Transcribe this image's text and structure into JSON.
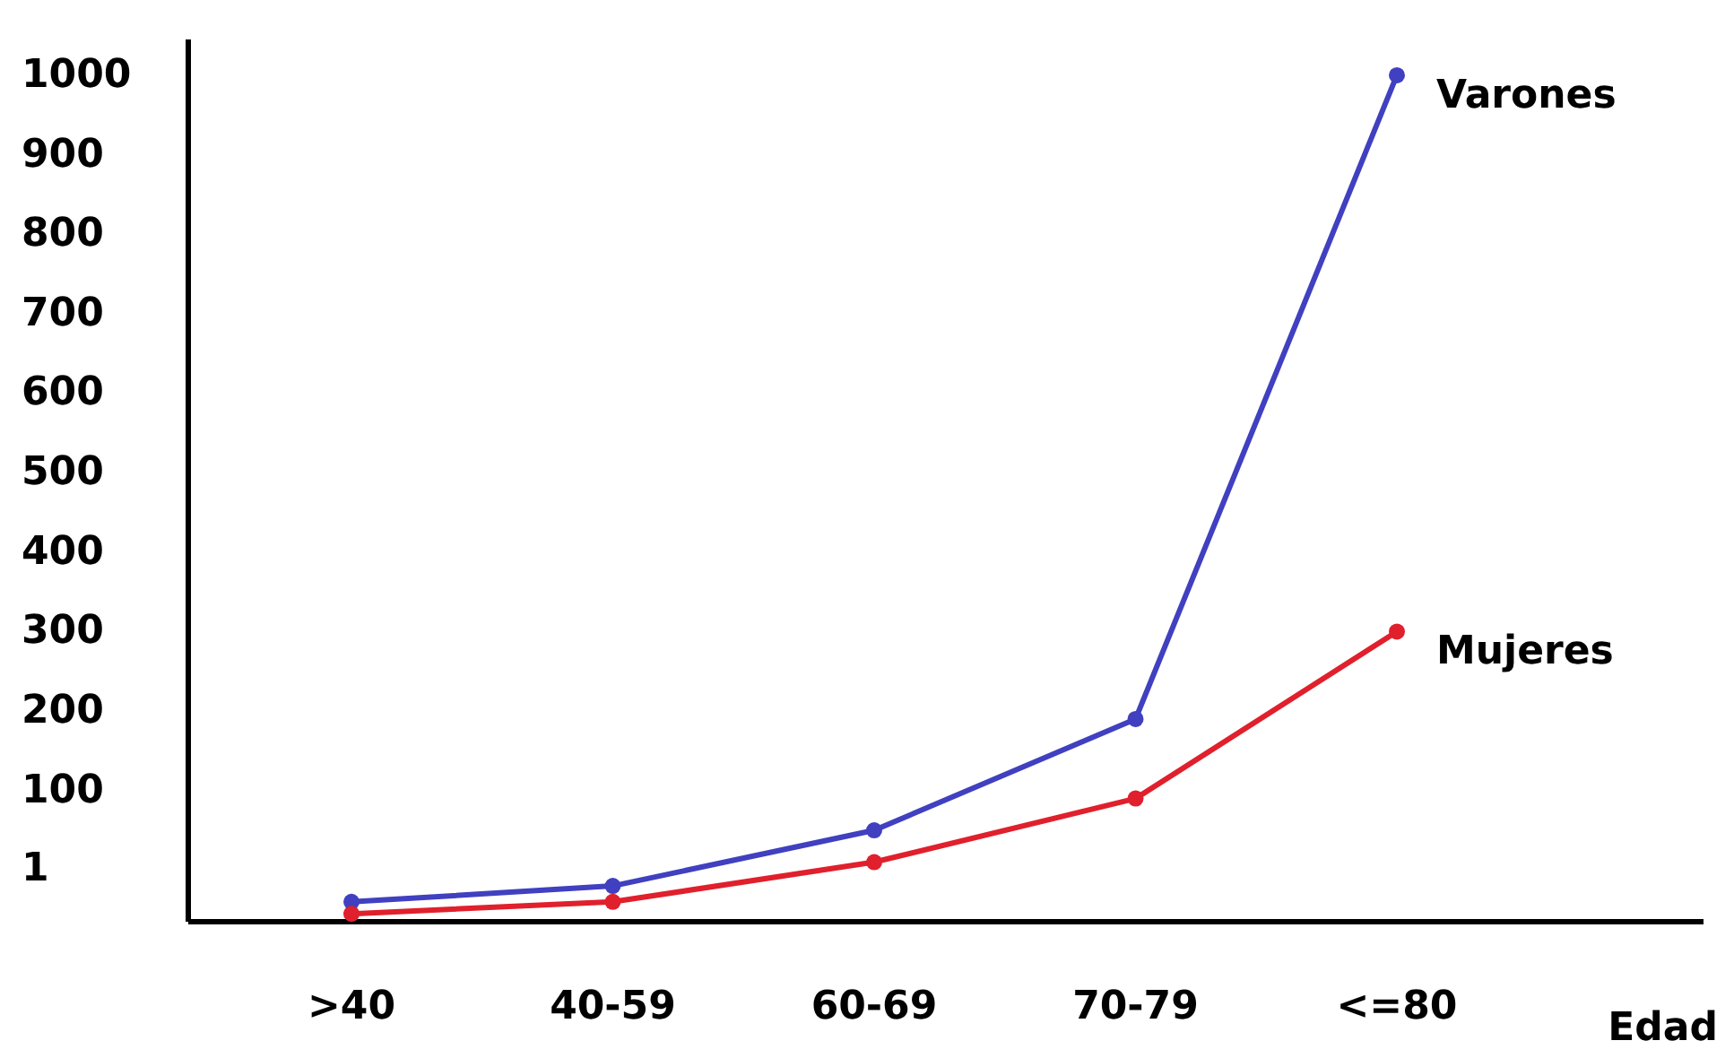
{
  "chart_data": {
    "type": "line",
    "xlabel": "Edad",
    "categories": [
      ">40",
      "40-59",
      "60-69",
      "70-79",
      "<=80"
    ],
    "series": [
      {
        "name": "Varones",
        "color": "#4040c0",
        "values": [
          -40,
          -20,
          50,
          190,
          1000
        ]
      },
      {
        "name": "Mujeres",
        "color": "#e0202c",
        "values": [
          -55,
          -40,
          10,
          90,
          300
        ]
      }
    ],
    "ylim": [
      -65,
      1045
    ],
    "yticks": [
      {
        "value": 1,
        "label": "1"
      },
      100,
      200,
      300,
      400,
      500,
      600,
      700,
      800,
      900,
      1000
    ],
    "marker": "circle",
    "line_style": "solid",
    "grid": false
  }
}
